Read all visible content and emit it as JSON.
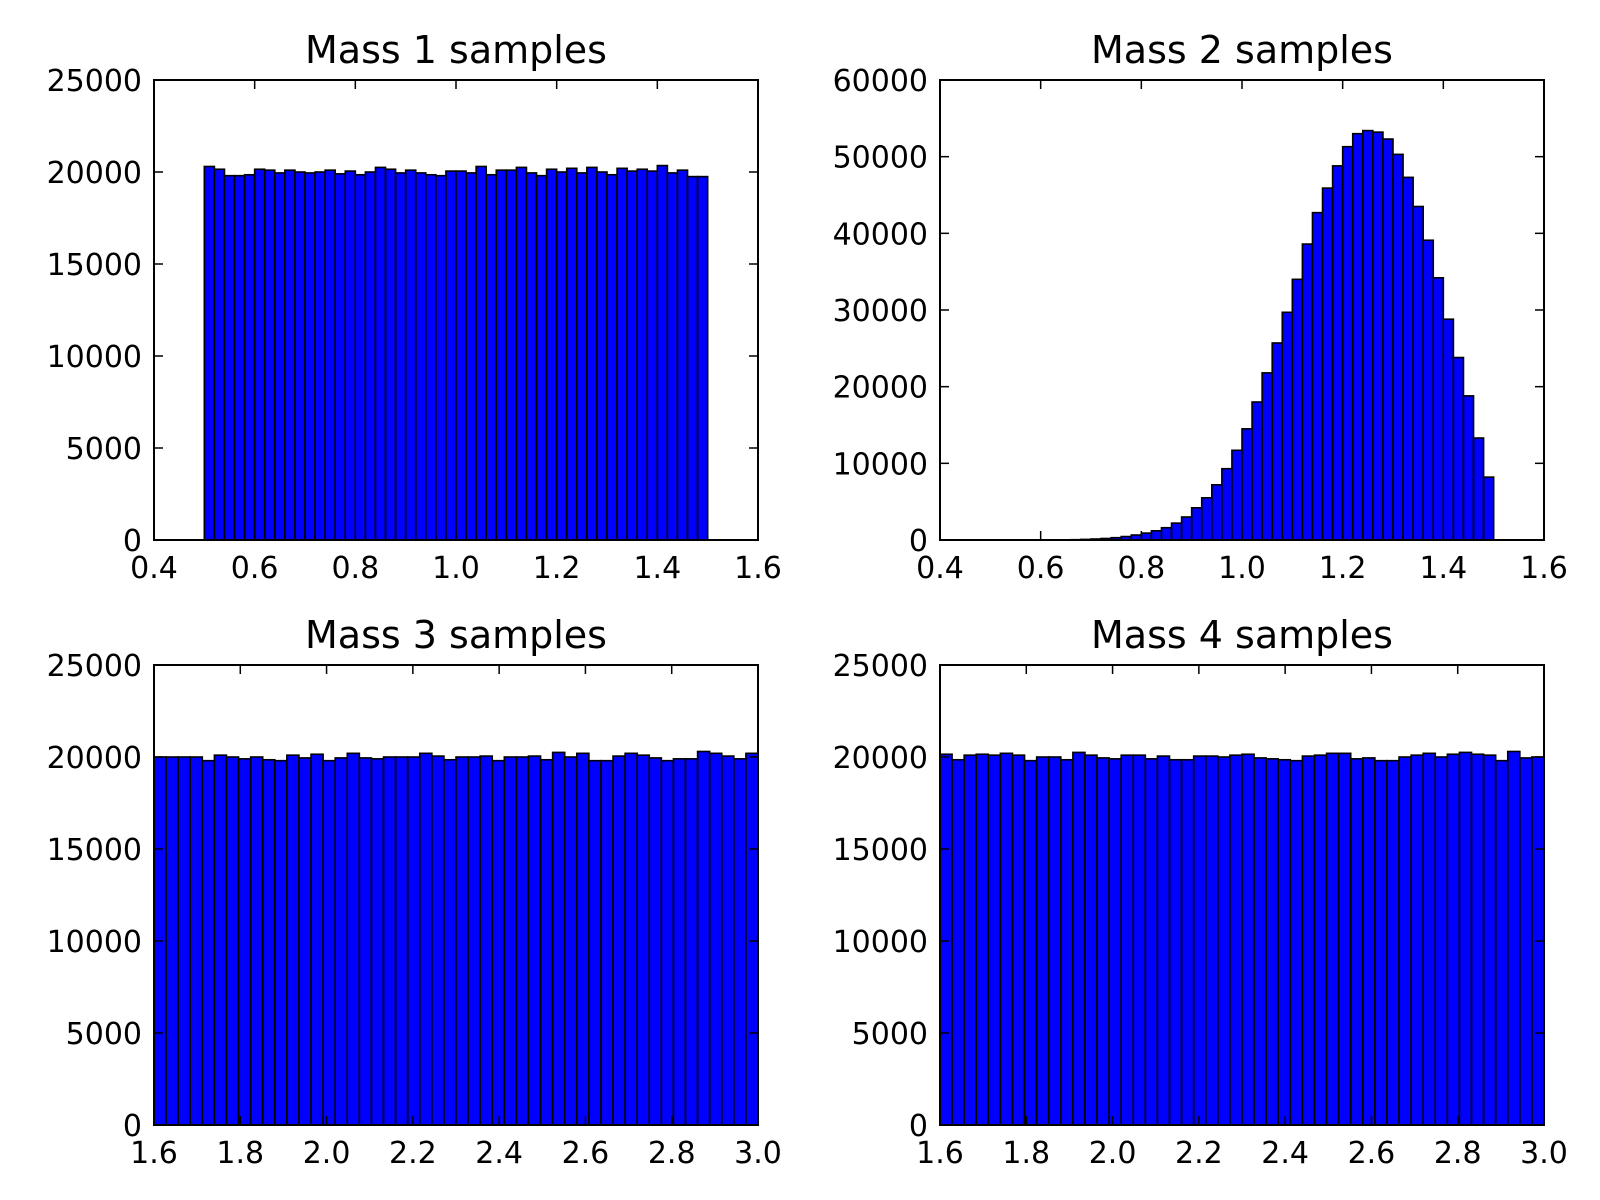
{
  "figure": {
    "bar_color": "#0000ff",
    "edge_color": "#000000",
    "background": "#ffffff"
  },
  "chart_data": [
    {
      "type": "bar",
      "title": "Mass 1 samples",
      "xlabel": "",
      "ylabel": "",
      "xlim": [
        0.4,
        1.6
      ],
      "ylim": [
        0,
        25000
      ],
      "xticks": [
        0.4,
        0.6,
        0.8,
        1.0,
        1.2,
        1.4,
        1.6
      ],
      "xtick_labels": [
        "0.4",
        "0.6",
        "0.8",
        "1.0",
        "1.2",
        "1.4",
        "1.6"
      ],
      "yticks": [
        0,
        5000,
        10000,
        15000,
        20000,
        25000
      ],
      "ytick_labels": [
        "0",
        "5000",
        "10000",
        "15000",
        "20000",
        "25000"
      ],
      "grid": false,
      "bin_start": 0.5,
      "bin_width": 0.02,
      "values": [
        20300,
        20150,
        19800,
        19800,
        19850,
        20150,
        20100,
        19950,
        20100,
        20000,
        19950,
        20000,
        20100,
        19900,
        20050,
        19850,
        20000,
        20250,
        20150,
        19950,
        20100,
        19950,
        19850,
        19800,
        20050,
        20050,
        19950,
        20300,
        19850,
        20100,
        20100,
        20250,
        19950,
        19800,
        20150,
        20000,
        20200,
        19950,
        20250,
        20000,
        19850,
        20200,
        20050,
        20150,
        20050,
        20350,
        19950,
        20100,
        19750,
        19750
      ]
    },
    {
      "type": "bar",
      "title": "Mass 2 samples",
      "xlabel": "",
      "ylabel": "",
      "xlim": [
        0.4,
        1.6
      ],
      "ylim": [
        0,
        60000
      ],
      "xticks": [
        0.4,
        0.6,
        0.8,
        1.0,
        1.2,
        1.4,
        1.6
      ],
      "xtick_labels": [
        "0.4",
        "0.6",
        "0.8",
        "1.0",
        "1.2",
        "1.4",
        "1.6"
      ],
      "yticks": [
        0,
        10000,
        20000,
        30000,
        40000,
        50000,
        60000
      ],
      "ytick_labels": [
        "0",
        "10000",
        "20000",
        "30000",
        "40000",
        "50000",
        "60000"
      ],
      "grid": false,
      "bin_start": 0.5,
      "bin_width": 0.02,
      "values": [
        0,
        0,
        0,
        0,
        0,
        0,
        0,
        20,
        40,
        80,
        130,
        200,
        300,
        450,
        650,
        900,
        1200,
        1600,
        2200,
        3000,
        4200,
        5500,
        7200,
        9300,
        11700,
        14500,
        18000,
        21800,
        25700,
        29700,
        34000,
        38600,
        42700,
        45900,
        48800,
        51300,
        53000,
        53400,
        53200,
        52300,
        50300,
        47300,
        43500,
        39100,
        34200,
        28800,
        23800,
        18800,
        13300,
        8200
      ]
    },
    {
      "type": "bar",
      "title": "Mass 3 samples",
      "xlabel": "",
      "ylabel": "",
      "xlim": [
        1.6,
        3.0
      ],
      "ylim": [
        0,
        25000
      ],
      "xticks": [
        1.6,
        1.8,
        2.0,
        2.2,
        2.4,
        2.6,
        2.8,
        3.0
      ],
      "xtick_labels": [
        "1.6",
        "1.8",
        "2.0",
        "2.2",
        "2.4",
        "2.6",
        "2.8",
        "3.0"
      ],
      "yticks": [
        0,
        5000,
        10000,
        15000,
        20000,
        25000
      ],
      "ytick_labels": [
        "0",
        "5000",
        "10000",
        "15000",
        "20000",
        "25000"
      ],
      "grid": false,
      "bin_start": 1.6,
      "bin_width": 0.028,
      "values": [
        20000,
        20000,
        20000,
        20000,
        19800,
        20100,
        20000,
        19900,
        20000,
        19850,
        19800,
        20100,
        19950,
        20150,
        19800,
        19950,
        20200,
        19950,
        19900,
        20000,
        20000,
        20000,
        20200,
        20050,
        19850,
        20000,
        20000,
        20050,
        19800,
        20000,
        20000,
        20050,
        19850,
        20250,
        20000,
        20200,
        19800,
        19800,
        20050,
        20200,
        20100,
        19950,
        19800,
        19900,
        19900,
        20300,
        20200,
        20050,
        19900,
        20200
      ]
    },
    {
      "type": "bar",
      "title": "Mass 4 samples",
      "xlabel": "",
      "ylabel": "",
      "xlim": [
        1.6,
        3.0
      ],
      "ylim": [
        0,
        25000
      ],
      "xticks": [
        1.6,
        1.8,
        2.0,
        2.2,
        2.4,
        2.6,
        2.8,
        3.0
      ],
      "xtick_labels": [
        "1.6",
        "1.8",
        "2.0",
        "2.2",
        "2.4",
        "2.6",
        "2.8",
        "3.0"
      ],
      "yticks": [
        0,
        5000,
        10000,
        15000,
        20000,
        25000
      ],
      "ytick_labels": [
        "0",
        "5000",
        "10000",
        "15000",
        "20000",
        "25000"
      ],
      "grid": false,
      "bin_start": 1.6,
      "bin_width": 0.028,
      "values": [
        20150,
        19850,
        20100,
        20150,
        20100,
        20200,
        20100,
        19800,
        20000,
        20000,
        19850,
        20250,
        20100,
        19950,
        19900,
        20100,
        20100,
        19900,
        20050,
        19850,
        19850,
        20050,
        20050,
        20000,
        20100,
        20150,
        19950,
        19900,
        19850,
        19800,
        20050,
        20100,
        20200,
        20200,
        19900,
        19950,
        19800,
        19800,
        20000,
        20100,
        20200,
        20000,
        20150,
        20250,
        20150,
        20100,
        19800,
        20300,
        19950,
        20000
      ]
    }
  ]
}
